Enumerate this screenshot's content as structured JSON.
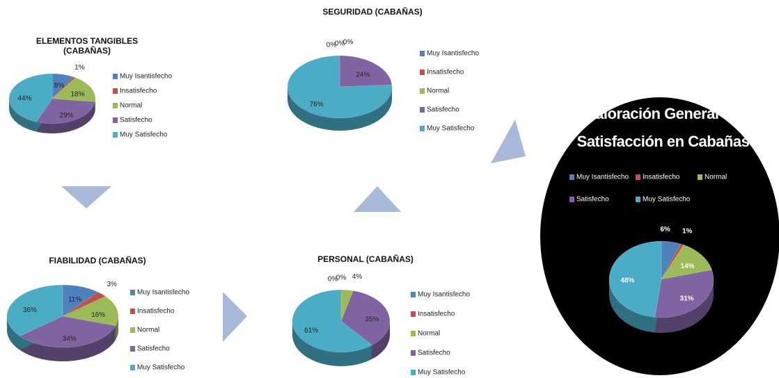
{
  "chart_data": [
    {
      "type": "pie",
      "title": "ELEMENTOS TANGIBLES (CABAÑAS)",
      "categories": [
        "Muy Isantisfecho",
        "Insatisfecho",
        "Normal",
        "Satisfecho",
        "Muy Satisfecho"
      ],
      "values": [
        8,
        1,
        18,
        29,
        44
      ],
      "value_labels": [
        "8%",
        "1%",
        "18%",
        "29%",
        "44%"
      ],
      "colors": [
        "#4f81bd",
        "#c0504d",
        "#9bbb59",
        "#8064a2",
        "#4bacc6"
      ]
    },
    {
      "type": "pie",
      "title": "SEGURIDAD (CABAÑAS)",
      "categories": [
        "Muy Isantisfecho",
        "Insatisfecho",
        "Normal",
        "Satisfecho",
        "Muy Satisfecho"
      ],
      "values": [
        0,
        0,
        0,
        24,
        76
      ],
      "value_labels": [
        "0%",
        "0%",
        "0%",
        "24%",
        "76%"
      ],
      "colors": [
        "#4f81bd",
        "#c0504d",
        "#9bbb59",
        "#8064a2",
        "#4bacc6"
      ]
    },
    {
      "type": "pie",
      "title": "FIABILIDAD (CABAÑAS)",
      "categories": [
        "Muy Isantisfecho",
        "Insatisfecho",
        "Normal",
        "Satisfecho",
        "Muy Satisfecho"
      ],
      "values": [
        11,
        3,
        16,
        34,
        36
      ],
      "value_labels": [
        "11%",
        "3%",
        "16%",
        "34%",
        "36%"
      ],
      "colors": [
        "#4f81bd",
        "#c0504d",
        "#9bbb59",
        "#8064a2",
        "#4bacc6"
      ]
    },
    {
      "type": "pie",
      "title": "PERSONAL (CABAÑAS)",
      "categories": [
        "Muy Isantisfecho",
        "Insatisfecho",
        "Normal",
        "Satisfecho",
        "Muy Satisfecho"
      ],
      "values": [
        0,
        0,
        4,
        35,
        61
      ],
      "value_labels": [
        "0%",
        "0%",
        "4%",
        "35%",
        "61%"
      ],
      "colors": [
        "#4f81bd",
        "#c0504d",
        "#9bbb59",
        "#8064a2",
        "#4bacc6"
      ]
    },
    {
      "type": "pie",
      "title": "Valoración General de Satisfacción en Cabañas",
      "categories": [
        "Muy Isantisfecho",
        "Insatisfecho",
        "Normal",
        "Satisfecho",
        "Muy Satisfecho"
      ],
      "values": [
        6,
        1,
        14,
        31,
        48
      ],
      "value_labels": [
        "6%",
        "1%",
        "14%",
        "31%",
        "48%"
      ],
      "colors": [
        "#4f81bd",
        "#c0504d",
        "#9bbb59",
        "#8064a2",
        "#4bacc6"
      ]
    }
  ]
}
